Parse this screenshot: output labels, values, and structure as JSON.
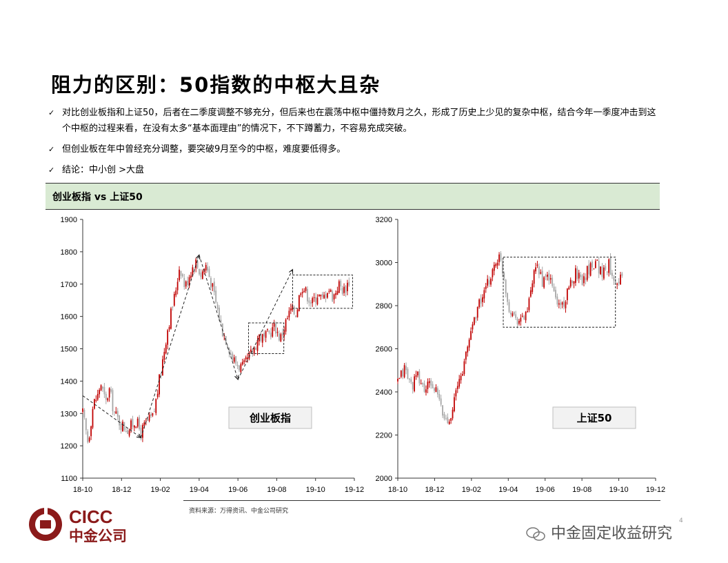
{
  "title": "阻力的区别：50指数的中枢大且杂",
  "bullets": [
    "对比创业板指和上证50，后者在二季度调整不够充分，但后来也在震荡中枢中僵持数月之久，形成了历史上少见的复杂中枢，结合今年一季度冲击到这个中枢的过程来看，在没有太多“基本面理由”的情况下，不下蹲蓄力，不容易充成突破。",
    "但创业板在年中曾经充分调整，要突破9月至今的中枢，难度要低得多。",
    "结论：中小创 >大盘"
  ],
  "banner": "创业板指 vs 上证50",
  "source": "资料来源：万得资讯、中金公司研究",
  "page_number": "4",
  "logo": {
    "en": "CICC",
    "cn": "中金公司"
  },
  "wechat_label": "中金固定收益研究",
  "colors": {
    "up": "#c00000",
    "down": "#a6a6a6",
    "banner_bg": "#d9ead3",
    "brand": "#8b1a1a"
  },
  "chart_data": [
    {
      "type": "candlestick",
      "label": "创业板指",
      "x_tick_labels": [
        "18-10",
        "18-12",
        "19-02",
        "19-04",
        "19-06",
        "19-08",
        "19-10",
        "19-12"
      ],
      "yticks": [
        1100,
        1200,
        1300,
        1400,
        1500,
        1600,
        1700,
        1800,
        1900
      ],
      "ylim": [
        1100,
        1900
      ],
      "close_path": [
        [
          0,
          1300
        ],
        [
          0.3,
          1210
        ],
        [
          0.6,
          1330
        ],
        [
          0.9,
          1360
        ],
        [
          1.0,
          1400
        ],
        [
          1.3,
          1330
        ],
        [
          1.5,
          1375
        ],
        [
          1.8,
          1300
        ],
        [
          2.2,
          1265
        ],
        [
          2.6,
          1250
        ],
        [
          3.0,
          1280
        ],
        [
          3.3,
          1240
        ],
        [
          3.6,
          1270
        ],
        [
          4.0,
          1290
        ],
        [
          4.4,
          1420
        ],
        [
          4.8,
          1560
        ],
        [
          5.2,
          1660
        ],
        [
          5.5,
          1760
        ],
        [
          5.8,
          1690
        ],
        [
          6.1,
          1740
        ],
        [
          6.4,
          1770
        ],
        [
          6.7,
          1730
        ],
        [
          7.0,
          1760
        ],
        [
          7.3,
          1700
        ],
        [
          7.6,
          1630
        ],
        [
          7.9,
          1560
        ],
        [
          8.2,
          1520
        ],
        [
          8.5,
          1470
        ],
        [
          8.8,
          1450
        ],
        [
          9.1,
          1440
        ],
        [
          9.4,
          1470
        ],
        [
          9.7,
          1500
        ],
        [
          10.0,
          1540
        ],
        [
          10.3,
          1530
        ],
        [
          10.6,
          1550
        ],
        [
          10.9,
          1570
        ],
        [
          11.2,
          1530
        ],
        [
          11.5,
          1580
        ],
        [
          11.8,
          1620
        ],
        [
          12.1,
          1610
        ],
        [
          12.4,
          1700
        ],
        [
          12.7,
          1670
        ],
        [
          13.0,
          1640
        ],
        [
          13.3,
          1670
        ],
        [
          13.6,
          1650
        ],
        [
          13.9,
          1690
        ],
        [
          14.2,
          1660
        ],
        [
          14.5,
          1700
        ],
        [
          14.8,
          1680
        ],
        [
          15.1,
          1710
        ]
      ],
      "annotations": {
        "arrows": [
          [
            [
              0,
              1355
            ],
            [
              3.3,
              1225
            ]
          ],
          [
            [
              3.3,
              1225
            ],
            [
              6.6,
              1790
            ]
          ],
          [
            [
              6.6,
              1790
            ],
            [
              8.8,
              1405
            ]
          ],
          [
            [
              8.8,
              1405
            ],
            [
              11.9,
              1745
            ]
          ]
        ],
        "boxes": [
          [
            [
              9.4,
              1485
            ],
            [
              11.4,
              1580
            ]
          ],
          [
            [
              11.9,
              1625
            ],
            [
              15.3,
              1728
            ]
          ]
        ]
      }
    },
    {
      "type": "candlestick",
      "label": "上证50",
      "x_tick_labels": [
        "18-10",
        "18-12",
        "19-02",
        "19-04",
        "19-06",
        "19-08",
        "19-10",
        "19-12"
      ],
      "yticks": [
        2000,
        2200,
        2400,
        2600,
        2800,
        3000,
        3200
      ],
      "ylim": [
        2000,
        3200
      ],
      "close_path": [
        [
          0,
          2440
        ],
        [
          0.4,
          2510
        ],
        [
          0.8,
          2430
        ],
        [
          1.2,
          2470
        ],
        [
          1.6,
          2410
        ],
        [
          2.0,
          2440
        ],
        [
          2.4,
          2380
        ],
        [
          2.7,
          2290
        ],
        [
          3.0,
          2260
        ],
        [
          3.3,
          2340
        ],
        [
          3.6,
          2430
        ],
        [
          4.0,
          2540
        ],
        [
          4.4,
          2700
        ],
        [
          4.8,
          2800
        ],
        [
          5.2,
          2860
        ],
        [
          5.6,
          2950
        ],
        [
          6.0,
          3030
        ],
        [
          6.3,
          2960
        ],
        [
          6.6,
          2800
        ],
        [
          7.0,
          2750
        ],
        [
          7.4,
          2730
        ],
        [
          7.8,
          2790
        ],
        [
          8.1,
          2930
        ],
        [
          8.4,
          2980
        ],
        [
          8.7,
          2900
        ],
        [
          9.0,
          2940
        ],
        [
          9.3,
          2870
        ],
        [
          9.6,
          2800
        ],
        [
          10.0,
          2820
        ],
        [
          10.3,
          2890
        ],
        [
          10.6,
          2960
        ],
        [
          11.0,
          2920
        ],
        [
          11.4,
          2970
        ],
        [
          11.8,
          3010
        ],
        [
          12.2,
          2950
        ],
        [
          12.6,
          2990
        ],
        [
          13.0,
          2920
        ],
        [
          13.4,
          2930
        ]
      ],
      "annotations": {
        "boxes": [
          [
            [
              6.3,
              2700
            ],
            [
              13.0,
              3025
            ]
          ]
        ]
      }
    }
  ]
}
